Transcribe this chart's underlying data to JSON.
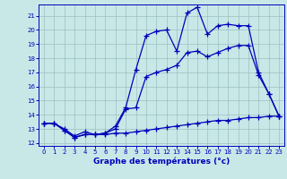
{
  "xlabel": "Graphe des températures (°c)",
  "xlim": [
    -0.5,
    23.5
  ],
  "ylim": [
    11.8,
    21.8
  ],
  "yticks": [
    12,
    13,
    14,
    15,
    16,
    17,
    18,
    19,
    20,
    21
  ],
  "xticks": [
    0,
    1,
    2,
    3,
    4,
    5,
    6,
    7,
    8,
    9,
    10,
    11,
    12,
    13,
    14,
    15,
    16,
    17,
    18,
    19,
    20,
    21,
    22,
    23
  ],
  "background_color": "#c8e8e8",
  "grid_color": "#9bbfbf",
  "line_color": "#0000bb",
  "series1": {
    "x": [
      0,
      1,
      2,
      3,
      4,
      5,
      6,
      7,
      8,
      9,
      10,
      11,
      12,
      13,
      14,
      15,
      16,
      17,
      18,
      19,
      20,
      21,
      22,
      23
    ],
    "y": [
      13.4,
      13.4,
      12.9,
      12.4,
      12.6,
      12.6,
      12.6,
      12.7,
      12.7,
      12.8,
      12.9,
      13.0,
      13.1,
      13.2,
      13.3,
      13.4,
      13.5,
      13.6,
      13.6,
      13.7,
      13.8,
      13.8,
      13.9,
      13.9
    ]
  },
  "series2": {
    "x": [
      0,
      1,
      2,
      3,
      4,
      5,
      6,
      7,
      8,
      9,
      10,
      11,
      12,
      13,
      14,
      15,
      16,
      17,
      18,
      19,
      20,
      21,
      22,
      23
    ],
    "y": [
      13.4,
      13.4,
      13.0,
      12.5,
      12.8,
      12.6,
      12.7,
      13.0,
      14.4,
      14.5,
      16.7,
      17.0,
      17.2,
      17.5,
      18.4,
      18.5,
      18.1,
      18.4,
      18.7,
      18.9,
      18.9,
      16.8,
      15.5,
      13.9
    ]
  },
  "series3": {
    "x": [
      0,
      1,
      2,
      3,
      4,
      5,
      6,
      7,
      8,
      9,
      10,
      11,
      12,
      13,
      14,
      15,
      16,
      17,
      18,
      19,
      20,
      21,
      22,
      23
    ],
    "y": [
      13.4,
      13.4,
      12.9,
      12.4,
      12.6,
      12.6,
      12.7,
      13.2,
      14.5,
      17.2,
      19.6,
      19.9,
      20.0,
      18.5,
      21.2,
      21.6,
      19.7,
      20.3,
      20.4,
      20.3,
      20.3,
      17.0,
      15.5,
      13.9
    ]
  }
}
